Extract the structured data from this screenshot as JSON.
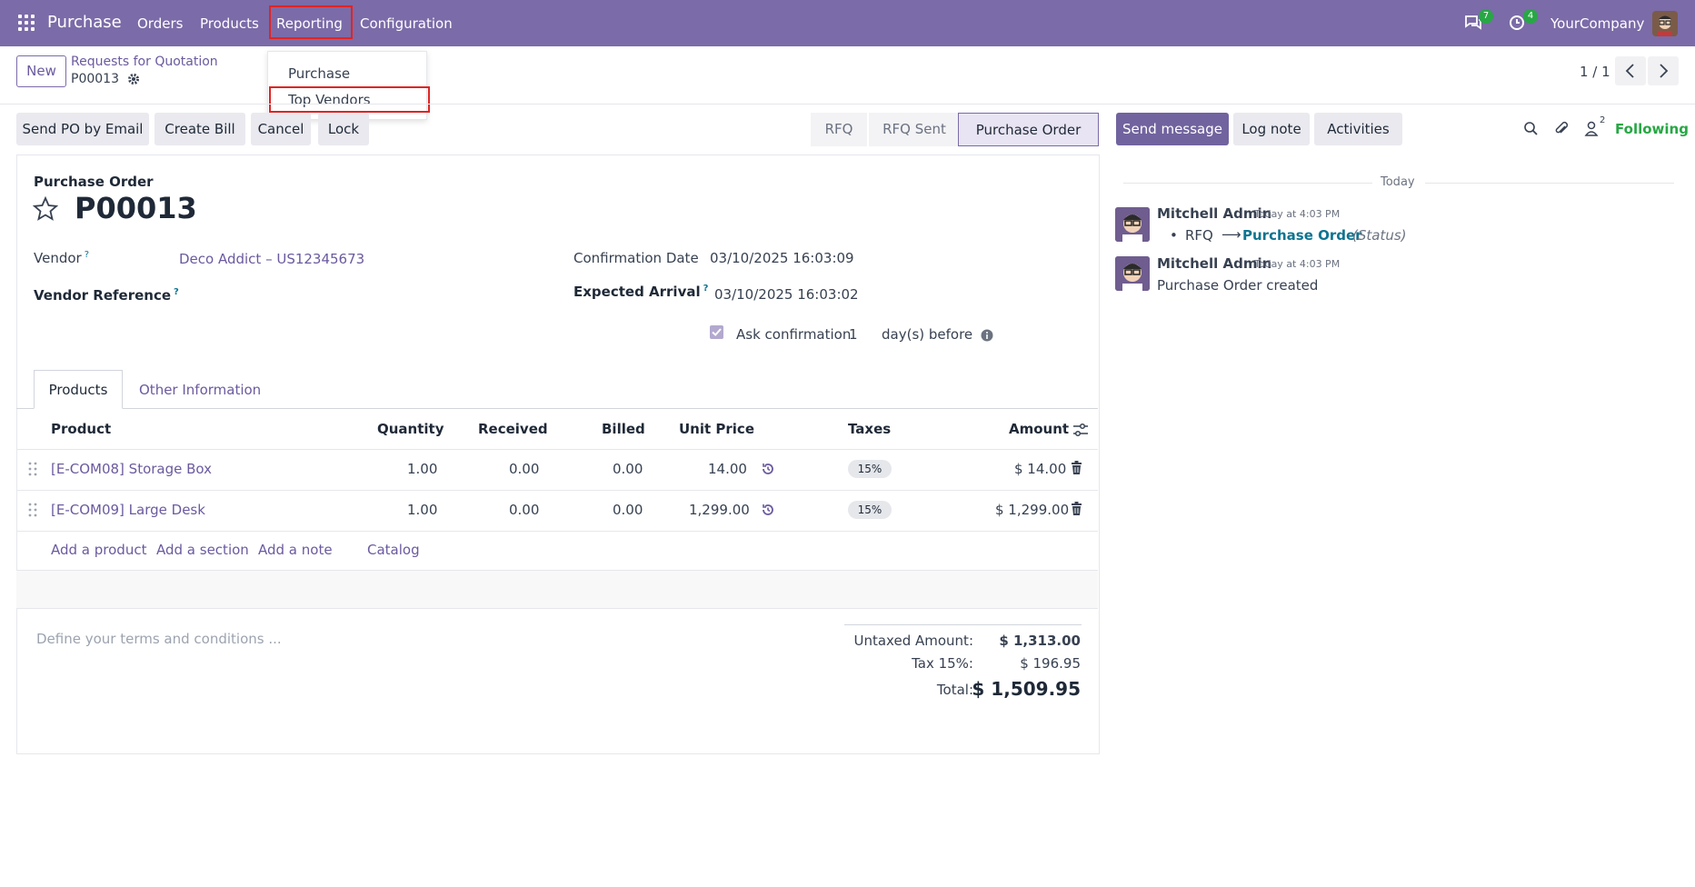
{
  "topnav": {
    "app_name": "Purchase",
    "menu": [
      "Orders",
      "Products",
      "Reporting",
      "Configuration"
    ],
    "messages_count": "7",
    "activities_count": "4",
    "company": "YourCompany"
  },
  "reporting_menu": {
    "items": [
      "Purchase",
      "Top Vendors"
    ]
  },
  "control_panel": {
    "new_label": "New",
    "breadcrumb_parent": "Requests for Quotation",
    "breadcrumb_current": "P00013",
    "pager": "1 / 1"
  },
  "actions": {
    "send_po": "Send PO by Email",
    "create_bill": "Create Bill",
    "cancel": "Cancel",
    "lock": "Lock"
  },
  "statusbar": {
    "steps": [
      "RFQ",
      "RFQ Sent",
      "Purchase Order"
    ],
    "active": "Purchase Order"
  },
  "chatter": {
    "send_message": "Send message",
    "log_note": "Log note",
    "activities": "Activities",
    "followers_count": "2",
    "following": "Following",
    "today": "Today",
    "messages": [
      {
        "author": "Mitchell Admin",
        "time": "Today at 4:03 PM",
        "from": "RFQ",
        "to": "Purchase Order",
        "field": "(Status)"
      },
      {
        "author": "Mitchell Admin",
        "time": "Today at 4:03 PM",
        "body": "Purchase Order created"
      }
    ]
  },
  "form": {
    "title_label": "Purchase Order",
    "name": "P00013",
    "vendor_label": "Vendor",
    "vendor_value": "Deco Addict – US12345673",
    "vendor_ref_label": "Vendor Reference",
    "confirmation_label": "Confirmation Date",
    "confirmation_value": "03/10/2025 16:03:09",
    "expected_label": "Expected Arrival",
    "expected_value": "03/10/2025 16:03:02",
    "ask_confirmation_label": "Ask confirmation",
    "ask_confirmation_days": "1",
    "days_before": "day(s) before"
  },
  "tabs": [
    "Products",
    "Other Information"
  ],
  "table": {
    "headers": [
      "Product",
      "Quantity",
      "Received",
      "Billed",
      "Unit Price",
      "Taxes",
      "Amount"
    ],
    "rows": [
      {
        "product": "[E-COM08] Storage Box",
        "qty": "1.00",
        "received": "0.00",
        "billed": "0.00",
        "price": "14.00",
        "tax": "15%",
        "amount": "$ 14.00"
      },
      {
        "product": "[E-COM09] Large Desk",
        "qty": "1.00",
        "received": "0.00",
        "billed": "0.00",
        "price": "1,299.00",
        "tax": "15%",
        "amount": "$ 1,299.00"
      }
    ],
    "add_product": "Add a product",
    "add_section": "Add a section",
    "add_note": "Add a note",
    "catalog": "Catalog"
  },
  "terms_placeholder": "Define your terms and conditions ...",
  "totals": {
    "untaxed_label": "Untaxed Amount:",
    "untaxed_value": "$ 1,313.00",
    "tax_label": "Tax 15%:",
    "tax_value": "$ 196.95",
    "total_label": "Total:",
    "total_value": "$ 1,509.95"
  }
}
